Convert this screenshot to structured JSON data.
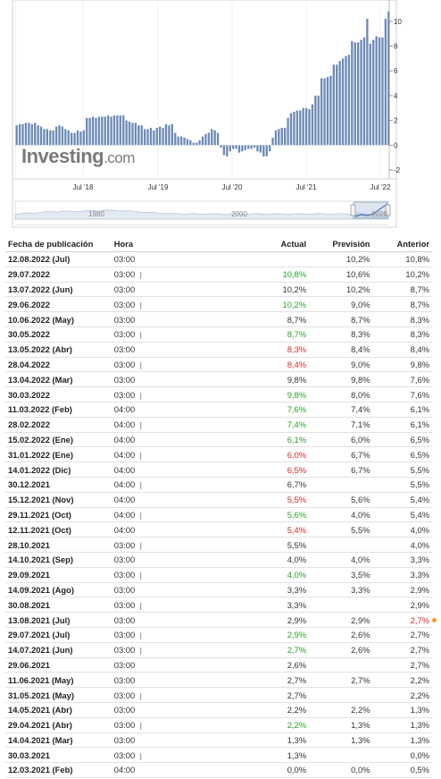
{
  "chart_data": {
    "type": "bar",
    "y_ticks": [
      "10",
      "8",
      "6",
      "4",
      "2",
      "0",
      "-2"
    ],
    "x_ticks": [
      "Jul '18",
      "Jul '19",
      "Jul '20",
      "Jul '21",
      "Jul '22"
    ],
    "nav_ticks": [
      "1980",
      "2000",
      "2020"
    ],
    "ylim": [
      -2,
      11
    ],
    "color": "#6d8ab5",
    "values": [
      1.6,
      1.7,
      1.7,
      1.8,
      1.8,
      1.7,
      1.8,
      1.6,
      1.5,
      1.3,
      1.3,
      1.2,
      1.2,
      1.5,
      1.6,
      1.5,
      1.3,
      1.2,
      1.0,
      1.0,
      1.2,
      1.1,
      1.2,
      2.2,
      2.2,
      2.3,
      2.2,
      2.3,
      2.3,
      2.3,
      2.4,
      2.3,
      2.4,
      2.4,
      2.4,
      2.4,
      2.0,
      1.9,
      1.8,
      1.8,
      1.6,
      1.6,
      1.3,
      1.3,
      1.4,
      1.2,
      1.4,
      1.5,
      1.4,
      1.7,
      1.6,
      1.7,
      1.0,
      0.7,
      0.7,
      0.6,
      0.5,
      0.4,
      0.2,
      0.2,
      0.4,
      0.7,
      0.9,
      1.0,
      1.3,
      1.2,
      1.0,
      -0.2,
      -0.8,
      -0.9,
      -0.5,
      -0.3,
      -0.3,
      -0.6,
      -0.5,
      -0.4,
      -0.3,
      -0.3,
      -0.2,
      -0.5,
      -0.6,
      -0.9,
      -0.9,
      -0.5,
      0.6,
      1.2,
      1.3,
      1.4,
      1.4,
      2.2,
      2.6,
      2.7,
      2.8,
      2.8,
      3.0,
      3.0,
      2.9,
      3.3,
      4.0,
      4.0,
      5.4,
      5.4,
      5.5,
      5.6,
      6.5,
      6.5,
      6.8,
      7.0,
      7.2,
      7.3,
      8.4,
      8.3,
      8.3,
      8.5,
      8.7,
      10.2,
      8.2,
      8.5,
      8.8,
      8.7,
      8.7,
      10.2,
      10.8
    ]
  },
  "logo": {
    "main": "Investing",
    "suffix": ".com"
  },
  "table": {
    "headers": {
      "date": "Fecha de publicación",
      "time": "Hora",
      "actual": "Actual",
      "forecast": "Previsión",
      "previous": "Anterior"
    },
    "rows": [
      {
        "date": "12.08.2022 (Jul)",
        "time": "03:00",
        "pre": false,
        "actual": "",
        "actual_c": "neu",
        "forecast": "10,2%",
        "previous": "10,8%",
        "previous_c": "neu"
      },
      {
        "date": "29.07.2022",
        "time": "03:00",
        "pre": true,
        "actual": "10,8%",
        "actual_c": "pos",
        "forecast": "10,6%",
        "previous": "10,2%",
        "previous_c": "neu"
      },
      {
        "date": "13.07.2022 (Jun)",
        "time": "03:00",
        "pre": false,
        "actual": "10,2%",
        "actual_c": "neu",
        "forecast": "10,2%",
        "previous": "8,7%",
        "previous_c": "neu"
      },
      {
        "date": "29.06.2022",
        "time": "03:00",
        "pre": true,
        "actual": "10,2%",
        "actual_c": "pos",
        "forecast": "9,0%",
        "previous": "8,7%",
        "previous_c": "neu"
      },
      {
        "date": "10.06.2022 (May)",
        "time": "03:00",
        "pre": false,
        "actual": "8,7%",
        "actual_c": "neu",
        "forecast": "8,7%",
        "previous": "8,3%",
        "previous_c": "neu"
      },
      {
        "date": "30.05.2022",
        "time": "03:00",
        "pre": true,
        "actual": "8,7%",
        "actual_c": "pos",
        "forecast": "8,3%",
        "previous": "8,3%",
        "previous_c": "neu"
      },
      {
        "date": "13.05.2022 (Abr)",
        "time": "03:00",
        "pre": false,
        "actual": "8,3%",
        "actual_c": "neg",
        "forecast": "8,4%",
        "previous": "8,4%",
        "previous_c": "neu"
      },
      {
        "date": "28.04.2022",
        "time": "03:00",
        "pre": true,
        "actual": "8,4%",
        "actual_c": "neg",
        "forecast": "9,0%",
        "previous": "9,8%",
        "previous_c": "neu"
      },
      {
        "date": "13.04.2022 (Mar)",
        "time": "03:00",
        "pre": false,
        "actual": "9,8%",
        "actual_c": "neu",
        "forecast": "9,8%",
        "previous": "7,6%",
        "previous_c": "neu"
      },
      {
        "date": "30.03.2022",
        "time": "03:00",
        "pre": true,
        "actual": "9,8%",
        "actual_c": "pos",
        "forecast": "8,0%",
        "previous": "7,6%",
        "previous_c": "neu"
      },
      {
        "date": "11.03.2022 (Feb)",
        "time": "04:00",
        "pre": false,
        "actual": "7,6%",
        "actual_c": "pos",
        "forecast": "7,4%",
        "previous": "6,1%",
        "previous_c": "neu"
      },
      {
        "date": "28.02.2022",
        "time": "04:00",
        "pre": true,
        "actual": "7,4%",
        "actual_c": "pos",
        "forecast": "7,1%",
        "previous": "6,1%",
        "previous_c": "neu"
      },
      {
        "date": "15.02.2022 (Ene)",
        "time": "04:00",
        "pre": false,
        "actual": "6,1%",
        "actual_c": "pos",
        "forecast": "6,0%",
        "previous": "6,5%",
        "previous_c": "neu"
      },
      {
        "date": "31.01.2022 (Ene)",
        "time": "04:00",
        "pre": true,
        "actual": "6,0%",
        "actual_c": "neg",
        "forecast": "6,7%",
        "previous": "6,5%",
        "previous_c": "neu"
      },
      {
        "date": "14.01.2022 (Dic)",
        "time": "04:00",
        "pre": false,
        "actual": "6,5%",
        "actual_c": "neg",
        "forecast": "6,7%",
        "previous": "5,5%",
        "previous_c": "neu"
      },
      {
        "date": "30.12.2021",
        "time": "04:00",
        "pre": true,
        "actual": "6,7%",
        "actual_c": "neu",
        "forecast": "",
        "previous": "5,5%",
        "previous_c": "neu"
      },
      {
        "date": "15.12.2021 (Nov)",
        "time": "04:00",
        "pre": false,
        "actual": "5,5%",
        "actual_c": "neg",
        "forecast": "5,6%",
        "previous": "5,4%",
        "previous_c": "neu"
      },
      {
        "date": "29.11.2021 (Oct)",
        "time": "04:00",
        "pre": true,
        "actual": "5,6%",
        "actual_c": "pos",
        "forecast": "4,0%",
        "previous": "5,4%",
        "previous_c": "neu"
      },
      {
        "date": "12.11.2021 (Oct)",
        "time": "04:00",
        "pre": false,
        "actual": "5,4%",
        "actual_c": "neg",
        "forecast": "5,5%",
        "previous": "4,0%",
        "previous_c": "neu"
      },
      {
        "date": "28.10.2021",
        "time": "03:00",
        "pre": true,
        "actual": "5,5%",
        "actual_c": "neu",
        "forecast": "",
        "previous": "4,0%",
        "previous_c": "neu"
      },
      {
        "date": "14.10.2021 (Sep)",
        "time": "03:00",
        "pre": false,
        "actual": "4,0%",
        "actual_c": "neu",
        "forecast": "4,0%",
        "previous": "3,3%",
        "previous_c": "neu"
      },
      {
        "date": "29.09.2021",
        "time": "03:00",
        "pre": true,
        "actual": "4,0%",
        "actual_c": "pos",
        "forecast": "3,5%",
        "previous": "3,3%",
        "previous_c": "neu"
      },
      {
        "date": "14.09.2021 (Ago)",
        "time": "03:00",
        "pre": false,
        "actual": "3,3%",
        "actual_c": "neu",
        "forecast": "3,3%",
        "previous": "2,9%",
        "previous_c": "neu"
      },
      {
        "date": "30.08.2021",
        "time": "03:00",
        "pre": true,
        "actual": "3,3%",
        "actual_c": "neu",
        "forecast": "",
        "previous": "2,9%",
        "previous_c": "neu"
      },
      {
        "date": "13.08.2021 (Jul)",
        "time": "03:00",
        "pre": false,
        "actual": "2,9%",
        "actual_c": "neu",
        "forecast": "2,9%",
        "previous": "2,7%",
        "previous_c": "neg"
      },
      {
        "date": "29.07.2021 (Jul)",
        "time": "03:00",
        "pre": true,
        "actual": "2,9%",
        "actual_c": "pos",
        "forecast": "2,6%",
        "previous": "2,7%",
        "previous_c": "neu"
      },
      {
        "date": "14.07.2021 (Jun)",
        "time": "03:00",
        "pre": true,
        "actual": "2,7%",
        "actual_c": "pos",
        "forecast": "2,6%",
        "previous": "2,7%",
        "previous_c": "neu"
      },
      {
        "date": "29.06.2021",
        "time": "03:00",
        "pre": false,
        "actual": "2,6%",
        "actual_c": "neu",
        "forecast": "",
        "previous": "2,7%",
        "previous_c": "neu"
      },
      {
        "date": "11.06.2021 (May)",
        "time": "03:00",
        "pre": false,
        "actual": "2,7%",
        "actual_c": "neu",
        "forecast": "2,7%",
        "previous": "2,2%",
        "previous_c": "neu"
      },
      {
        "date": "31.05.2021 (May)",
        "time": "03:00",
        "pre": true,
        "actual": "2,7%",
        "actual_c": "neu",
        "forecast": "",
        "previous": "2,2%",
        "previous_c": "neu"
      },
      {
        "date": "14.05.2021 (Abr)",
        "time": "03:00",
        "pre": false,
        "actual": "2,2%",
        "actual_c": "neu",
        "forecast": "2,2%",
        "previous": "1,3%",
        "previous_c": "neu"
      },
      {
        "date": "29.04.2021 (Abr)",
        "time": "03:00",
        "pre": true,
        "actual": "2,2%",
        "actual_c": "pos",
        "forecast": "1,3%",
        "previous": "1,3%",
        "previous_c": "neu"
      },
      {
        "date": "14.04.2021 (Mar)",
        "time": "03:00",
        "pre": false,
        "actual": "1,3%",
        "actual_c": "neu",
        "forecast": "1,3%",
        "previous": "1,3%",
        "previous_c": "neu"
      },
      {
        "date": "30.03.2021",
        "time": "03:00",
        "pre": true,
        "actual": "1,3%",
        "actual_c": "neu",
        "forecast": "",
        "previous": "0,0%",
        "previous_c": "neu"
      },
      {
        "date": "12.03.2021 (Feb)",
        "time": "04:00",
        "pre": false,
        "actual": "0,0%",
        "actual_c": "neu",
        "forecast": "0,0%",
        "previous": "0,5%",
        "previous_c": "neu"
      }
    ]
  }
}
